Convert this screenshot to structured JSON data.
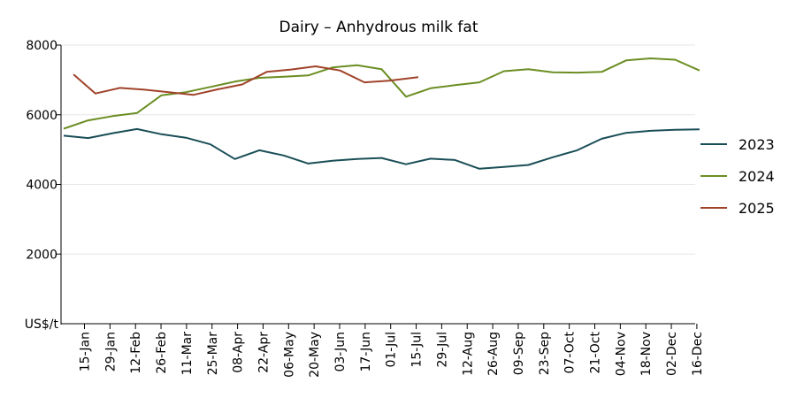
{
  "chart_data": {
    "type": "line",
    "title": "Dairy – Anhydrous milk fat",
    "unit_label": "US$/t",
    "xlabel": "",
    "ylabel": "",
    "ylim": [
      0,
      8000
    ],
    "yticks": [
      "2000",
      "4000",
      "6000",
      "8000"
    ],
    "y_tick_values": [
      2000,
      4000,
      6000,
      8000
    ],
    "categories": [
      "15-Jan",
      "29-Jan",
      "12-Feb",
      "26-Feb",
      "11-Mar",
      "25-Mar",
      "08-Apr",
      "22-Apr",
      "06-May",
      "20-May",
      "03-Jun",
      "17-Jun",
      "01-Jul",
      "15-Jul",
      "29-Jul",
      "12-Aug",
      "26-Aug",
      "09-Sep",
      "23-Sep",
      "07-Oct",
      "21-Oct",
      "04-Nov",
      "18-Nov",
      "02-Dec",
      "16-Dec"
    ],
    "grid": "horizontal",
    "legend_position": "right",
    "series": [
      {
        "name": "2023",
        "color": "#1a4e57",
        "points": [
          [
            0,
            5400
          ],
          [
            1,
            5330
          ],
          [
            2,
            5470
          ],
          [
            3,
            5590
          ],
          [
            4,
            5440
          ],
          [
            5,
            5340
          ],
          [
            6,
            5150
          ],
          [
            7,
            4730
          ],
          [
            8,
            4980
          ],
          [
            9,
            4830
          ],
          [
            10,
            4600
          ],
          [
            11,
            4680
          ],
          [
            12,
            4730
          ],
          [
            13,
            4760
          ],
          [
            14,
            4580
          ],
          [
            15,
            4740
          ],
          [
            16,
            4700
          ],
          [
            17,
            4450
          ],
          [
            18,
            4500
          ],
          [
            19,
            4560
          ],
          [
            20,
            4780
          ],
          [
            21,
            4980
          ],
          [
            22,
            5310
          ],
          [
            23,
            5480
          ],
          [
            24,
            5540
          ],
          [
            25,
            5570
          ],
          [
            26,
            5580
          ]
        ]
      },
      {
        "name": "2024",
        "color": "#6b8e23",
        "points": [
          [
            0,
            5600
          ],
          [
            1,
            5840
          ],
          [
            2,
            5960
          ],
          [
            3,
            6050
          ],
          [
            4,
            6560
          ],
          [
            5,
            6650
          ],
          [
            6,
            6800
          ],
          [
            7,
            6950
          ],
          [
            8,
            7060
          ],
          [
            9,
            7090
          ],
          [
            10,
            7130
          ],
          [
            11,
            7360
          ],
          [
            12,
            7420
          ],
          [
            13,
            7310
          ],
          [
            14,
            6520
          ],
          [
            15,
            6760
          ],
          [
            16,
            6850
          ],
          [
            17,
            6930
          ],
          [
            18,
            7250
          ],
          [
            19,
            7310
          ],
          [
            20,
            7220
          ],
          [
            21,
            7210
          ],
          [
            22,
            7230
          ],
          [
            23,
            7560
          ],
          [
            24,
            7620
          ],
          [
            25,
            7580
          ],
          [
            26,
            7270
          ]
        ]
      },
      {
        "name": "2025",
        "color": "#a0432a",
        "points": [
          [
            0.4,
            7160
          ],
          [
            1.3,
            6610
          ],
          [
            2.3,
            6770
          ],
          [
            3.3,
            6720
          ],
          [
            4.3,
            6650
          ],
          [
            5.3,
            6570
          ],
          [
            6.3,
            6730
          ],
          [
            7.3,
            6870
          ],
          [
            8.3,
            7230
          ],
          [
            9.3,
            7300
          ],
          [
            10.3,
            7390
          ],
          [
            11.3,
            7270
          ],
          [
            12.3,
            6930
          ],
          [
            13.3,
            6980
          ],
          [
            14.5,
            7080
          ]
        ]
      }
    ]
  }
}
